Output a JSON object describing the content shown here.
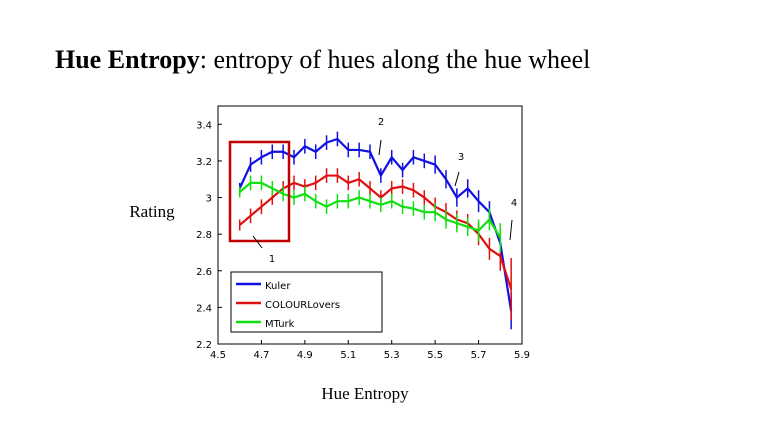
{
  "slide": {
    "title_term": "Hue Entropy",
    "title_rest": ": entropy of hues along the hue wheel"
  },
  "chart_data": {
    "type": "line",
    "xlabel": "Hue Entropy",
    "ylabel": "Rating",
    "x": [
      4.6,
      4.65,
      4.7,
      4.75,
      4.8,
      4.85,
      4.9,
      4.95,
      5.0,
      5.05,
      5.1,
      5.15,
      5.2,
      5.25,
      5.3,
      5.35,
      5.4,
      5.45,
      5.5,
      5.55,
      5.6,
      5.65,
      5.7,
      5.75,
      5.8,
      5.85
    ],
    "series": [
      {
        "name": "Kuler",
        "color": "#1010e0",
        "values": [
          3.05,
          3.18,
          3.22,
          3.25,
          3.25,
          3.22,
          3.28,
          3.25,
          3.3,
          3.32,
          3.26,
          3.26,
          3.25,
          3.12,
          3.22,
          3.15,
          3.22,
          3.2,
          3.18,
          3.1,
          3.0,
          3.05,
          2.98,
          2.92,
          2.75,
          2.38
        ],
        "errors": [
          0.03,
          0.04,
          0.04,
          0.04,
          0.04,
          0.04,
          0.04,
          0.04,
          0.04,
          0.04,
          0.04,
          0.04,
          0.04,
          0.04,
          0.04,
          0.04,
          0.04,
          0.04,
          0.05,
          0.05,
          0.05,
          0.05,
          0.06,
          0.06,
          0.08,
          0.1
        ]
      },
      {
        "name": "COLOURLovers",
        "color": "#e01010",
        "values": [
          2.85,
          2.9,
          2.95,
          3.0,
          3.05,
          3.08,
          3.06,
          3.08,
          3.12,
          3.12,
          3.08,
          3.1,
          3.05,
          3.0,
          3.05,
          3.06,
          3.04,
          3.0,
          2.95,
          2.92,
          2.88,
          2.86,
          2.8,
          2.72,
          2.68,
          2.5
        ],
        "errors": [
          0.03,
          0.04,
          0.04,
          0.04,
          0.04,
          0.04,
          0.04,
          0.04,
          0.04,
          0.04,
          0.04,
          0.04,
          0.04,
          0.04,
          0.04,
          0.04,
          0.04,
          0.04,
          0.05,
          0.05,
          0.05,
          0.05,
          0.06,
          0.06,
          0.08,
          0.17
        ]
      },
      {
        "name": "MTurk",
        "color": "#10e010",
        "values": [
          3.03,
          3.08,
          3.08,
          3.05,
          3.02,
          3.0,
          3.02,
          2.98,
          2.95,
          2.98,
          2.98,
          3.0,
          2.98,
          2.96,
          2.98,
          2.95,
          2.94,
          2.92,
          2.92,
          2.88,
          2.86,
          2.84,
          2.82,
          2.88,
          2.78,
          null
        ],
        "errors": [
          0.03,
          0.04,
          0.04,
          0.04,
          0.04,
          0.04,
          0.04,
          0.04,
          0.04,
          0.04,
          0.04,
          0.04,
          0.04,
          0.04,
          0.04,
          0.04,
          0.04,
          0.04,
          0.05,
          0.05,
          0.05,
          0.05,
          0.06,
          0.06,
          0.08,
          null
        ]
      }
    ],
    "xlim": [
      4.5,
      5.9
    ],
    "ylim": [
      2.2,
      3.5
    ],
    "xticks": [
      4.5,
      4.7,
      4.9,
      5.1,
      5.3,
      5.5,
      5.7,
      5.9
    ],
    "yticks": [
      2.2,
      2.4,
      2.6,
      2.8,
      3,
      3.2,
      3.4
    ],
    "legend": "lower left",
    "annotations": [
      "1",
      "2",
      "3",
      "4"
    ]
  }
}
